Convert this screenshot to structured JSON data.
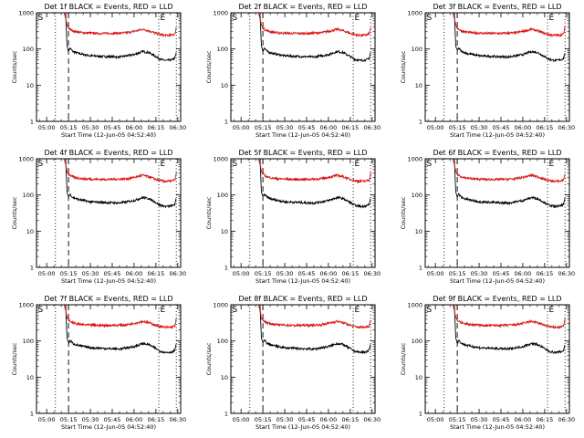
{
  "figure": {
    "background": "#ffffff",
    "axis_color": "#000000"
  },
  "chart_data": [
    {
      "type": "line",
      "title": "Det 1f BLACK = Events, RED = LLD"
    },
    {
      "type": "line",
      "title": "Det 2f BLACK = Events, RED = LLD"
    },
    {
      "type": "line",
      "title": "Det 3f BLACK = Events, RED = LLD"
    },
    {
      "type": "line",
      "title": "Det 4f BLACK = Events, RED = LLD"
    },
    {
      "type": "line",
      "title": "Det 5f BLACK = Events, RED = LLD"
    },
    {
      "type": "line",
      "title": "Det 6f BLACK = Events, RED = LLD"
    },
    {
      "type": "line",
      "title": "Det 7f BLACK = Events, RED = LLD"
    },
    {
      "type": "line",
      "title": "Det 8f BLACK = Events, RED = LLD"
    },
    {
      "type": "line",
      "title": "Det 9f BLACK = Events, RED = LLD"
    }
  ],
  "shared": {
    "xlabel": "Start Time (12-Jun-05 04:52:40)",
    "ylabel": "Counts/sec",
    "xticks": [
      "05:00",
      "05:15",
      "05:30",
      "05:45",
      "06:00",
      "06:15",
      "06:30"
    ],
    "xtick_minutes": [
      0,
      15,
      30,
      45,
      60,
      75,
      90
    ],
    "xlim_minutes": [
      -7,
      92
    ],
    "yscale": "log",
    "yticks": [
      "1",
      "10",
      "100",
      "1000"
    ],
    "yticks_values": [
      1,
      10,
      100,
      1000
    ],
    "ylim": [
      1,
      1000
    ],
    "start_marker": "S",
    "end_marker": "E",
    "vertical_lines": [
      {
        "style": "dotted",
        "minute": 6
      },
      {
        "style": "dashed",
        "minute": 15
      },
      {
        "style": "dotted",
        "minute": 77
      },
      {
        "style": "dotted",
        "minute": 89
      }
    ],
    "series": [
      {
        "name": "Events",
        "color": "#000000",
        "x": [
          13,
          14,
          15,
          16,
          18,
          22,
          30,
          40,
          50,
          60,
          66,
          70,
          74,
          78,
          82,
          86,
          88,
          89
        ],
        "values": [
          1000,
          120,
          90,
          105,
          85,
          75,
          65,
          62,
          60,
          70,
          85,
          80,
          65,
          52,
          48,
          50,
          55,
          80
        ]
      },
      {
        "name": "LLD",
        "color": "#e01010",
        "x": [
          12,
          13,
          14,
          15,
          17,
          20,
          25,
          35,
          45,
          55,
          62,
          66,
          70,
          75,
          80,
          85,
          88,
          89
        ],
        "values": [
          1000,
          700,
          450,
          380,
          330,
          300,
          280,
          270,
          270,
          280,
          320,
          350,
          320,
          270,
          240,
          240,
          260,
          400
        ]
      }
    ]
  }
}
